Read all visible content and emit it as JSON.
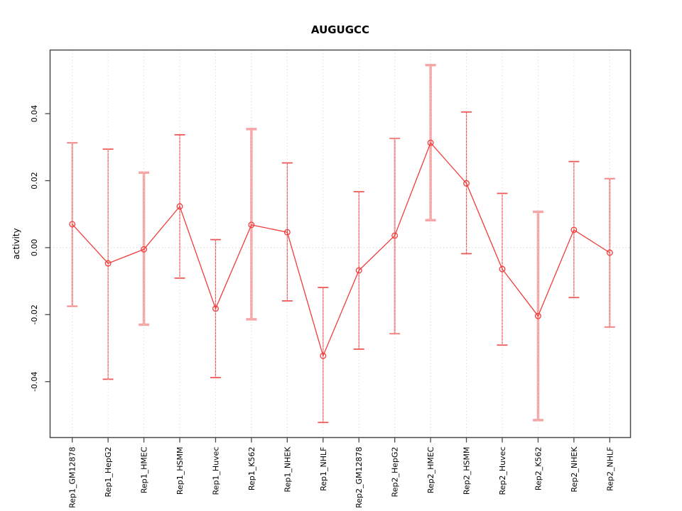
{
  "chart_data": {
    "type": "line",
    "title": "AUGUGCC",
    "xlabel": "",
    "ylabel": "activity",
    "legend": "none",
    "categories": [
      "Rep1_GM12878",
      "Rep1_HepG2",
      "Rep1_HMEC",
      "Rep1_HSMM",
      "Rep1_Huvec",
      "Rep1_K562",
      "Rep1_NHEK",
      "Rep1_NHLF",
      "Rep2_GM12878",
      "Rep2_HepG2",
      "Rep2_HMEC",
      "Rep2_HSMM",
      "Rep2_Huvec",
      "Rep2_K562",
      "Rep2_NHEK",
      "Rep2_NHLF"
    ],
    "series": [
      {
        "name": "activity",
        "values": [
          0.007,
          -0.0047,
          -0.0005,
          0.0123,
          -0.0182,
          0.0068,
          0.0046,
          -0.0323,
          -0.0068,
          0.0036,
          0.0313,
          0.0192,
          -0.0064,
          -0.0204,
          0.0053,
          -0.0015
        ]
      }
    ],
    "error_upper": [
      0.0313,
      0.0294,
      0.0224,
      0.0337,
      0.0024,
      0.0354,
      0.0253,
      -0.0119,
      0.0167,
      0.0326,
      0.0545,
      0.0405,
      0.0162,
      0.0107,
      0.0257,
      0.0206
    ],
    "error_lower": [
      -0.0175,
      -0.0393,
      -0.023,
      -0.0091,
      -0.0388,
      -0.0214,
      -0.0159,
      -0.0522,
      -0.0303,
      -0.0257,
      0.0082,
      -0.0018,
      -0.0291,
      -0.0515,
      -0.0149,
      -0.0237
    ],
    "bar_style": [
      "medium",
      "thin",
      "thick",
      "thin",
      "thin",
      "thick",
      "thin",
      "thin",
      "thin",
      "medium",
      "thick",
      "thin",
      "thin",
      "thick",
      "thin",
      "medium"
    ],
    "y_ticks": [
      -0.04,
      -0.02,
      0,
      0.02,
      0.04
    ],
    "y_tick_labels": [
      "-0.04",
      "-0.02",
      "0.00",
      "0.02",
      "0.04"
    ],
    "ylim": [
      -0.0567,
      0.059
    ],
    "grid": {
      "vertical_dotted": true,
      "horizontal_zero_dotted": true
    },
    "colors": {
      "point": "#f13c3c",
      "line": "#f13c3c",
      "bar_thin": "#ef5858",
      "bar_medium": "#f48484",
      "bar_thick": "#f7a6a6",
      "grid": "#d8d8d8",
      "zero_line": "#cccccc",
      "axis": "#4a4a4a",
      "text": "#000000"
    }
  }
}
